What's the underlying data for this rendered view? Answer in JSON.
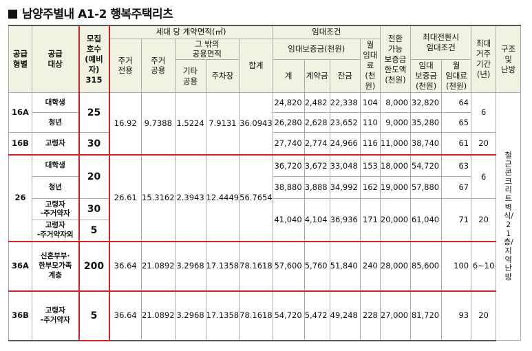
{
  "title": "남양주별내 A1-2 행복주택리츠",
  "headers": {
    "type": "공급\n형별",
    "target": "공급\n대상",
    "units": "모집\n호수\n(예비자)",
    "units_total": "315",
    "area_group": "세대 당 계약면적(㎡)",
    "exclusive": "주거\n전용",
    "shared": "주거\n공용",
    "other_group": "그 밖의\n공용면적",
    "other_shared": "기타\n공용",
    "parking": "주차장",
    "total_area": "합계",
    "lease_group": "임대조건",
    "deposit_group": "임대보증금(천원)",
    "deposit_total": "계",
    "contract": "계약금",
    "balance": "잔금",
    "monthly": "월\n임대료\n(천원)",
    "convert_limit": "전환\n가능\n보증금\n한도액\n(천원)",
    "max_group": "최대전환시\n임대조건",
    "max_deposit": "임대\n보증금\n(천원)",
    "max_rent": "월\n임대료\n(천원)",
    "max_period": "최대\n거주\n기간\n(년)",
    "structure": "구조\n및\n난방"
  },
  "rows": [
    {
      "type": "16A",
      "target": "대학생",
      "units": "25",
      "excl": "16.92",
      "shared": "9.7388",
      "other": "1.5224",
      "parking": "7.9131",
      "total": "36.0943",
      "deposit": "24,820",
      "contract": "2,482",
      "balance": "22,338",
      "monthly": "104",
      "limit": "8,000",
      "max_dep": "32,820",
      "max_rent": "64",
      "period": "6"
    },
    {
      "target": "청년",
      "deposit": "26,280",
      "contract": "2,628",
      "balance": "23,652",
      "monthly": "110",
      "limit": "9,000",
      "max_dep": "35,280",
      "max_rent": "65"
    },
    {
      "type": "16B",
      "target": "고령자",
      "units": "30",
      "deposit": "27,740",
      "contract": "2,774",
      "balance": "24,966",
      "monthly": "116",
      "limit": "11,000",
      "max_dep": "38,740",
      "max_rent": "61",
      "period": "20"
    },
    {
      "type": "26",
      "target": "대학생",
      "units": "20",
      "excl": "26.61",
      "shared": "15.3162",
      "other": "2.3943",
      "parking": "12.4449",
      "total": "56.7654",
      "deposit": "36,720",
      "contract": "3,672",
      "balance": "33,048",
      "monthly": "153",
      "limit": "18,000",
      "max_dep": "54,720",
      "max_rent": "63",
      "period": "6"
    },
    {
      "target": "청년",
      "deposit": "38,880",
      "contract": "3,888",
      "balance": "34,992",
      "monthly": "162",
      "limit": "19,000",
      "max_dep": "57,880",
      "max_rent": "67"
    },
    {
      "target": "고령자\n-주거약자",
      "units": "30",
      "deposit": "41,040",
      "contract": "4,104",
      "balance": "36,936",
      "monthly": "171",
      "limit": "20,000",
      "max_dep": "61,040",
      "max_rent": "71",
      "period": "20"
    },
    {
      "target": "고령자\n-주거약자외",
      "units": "5"
    },
    {
      "type": "36A",
      "target": "신혼부부·\n한부모가족\n계층",
      "units": "200",
      "excl": "36.64",
      "shared": "21.0892",
      "other": "3.2968",
      "parking": "17.1358",
      "total": "78.1618",
      "deposit": "57,600",
      "contract": "5,760",
      "balance": "51,840",
      "monthly": "240",
      "limit": "28,000",
      "max_dep": "85,600",
      "max_rent": "100",
      "period": "6~10"
    },
    {
      "type": "36B",
      "target": "고령자\n-주거약자",
      "units": "5",
      "excl": "36.64",
      "shared": "21.0892",
      "other": "3.2968",
      "parking": "17.1358",
      "total": "78.1618",
      "deposit": "54,720",
      "contract": "5,472",
      "balance": "49,248",
      "monthly": "228",
      "limit": "27,000",
      "max_dep": "81,720",
      "max_rent": "93",
      "period": "20"
    }
  ],
  "structure": "철근콘크리트벽식/21층/지역난방",
  "colors": {
    "highlight_border": "#d32027",
    "header_bg": "#f1f2e1"
  }
}
